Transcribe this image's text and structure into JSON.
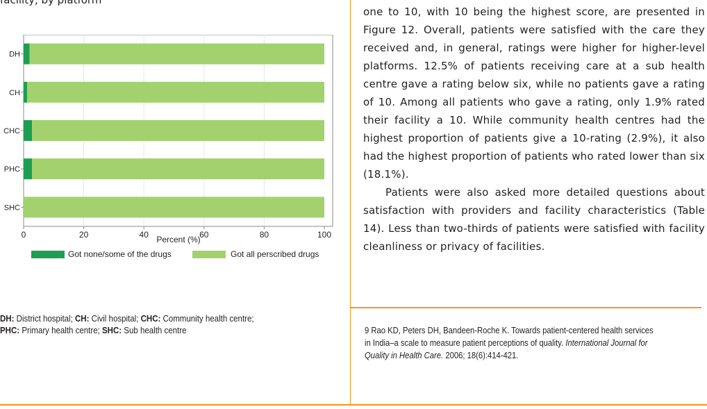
{
  "left_column": {
    "top_fragment": "facility, by platform",
    "caption": {
      "line1": [
        {
          "abbr": "DH:",
          "text": " District hospital; "
        },
        {
          "abbr": "CH:",
          "text": " Civil hospital; "
        },
        {
          "abbr": "CHC:",
          "text": " Community health centre;"
        }
      ],
      "line2": [
        {
          "abbr": "PHC:",
          "text": " Primary health centre; "
        },
        {
          "abbr": "SHC:",
          "text": " Sub health centre"
        }
      ]
    }
  },
  "chart_data": {
    "type": "bar",
    "orientation": "horizontal",
    "stacked": true,
    "categories": [
      "DH",
      "CH",
      "CHC",
      "PHC",
      "SHC"
    ],
    "series": [
      {
        "name": "Got none/some of the drugs",
        "color": "#1e9e53",
        "values": [
          2,
          1.2,
          2.8,
          2.8,
          0
        ]
      },
      {
        "name": "Got all perscribed drugs",
        "color": "#a3d16e",
        "values": [
          98,
          98.8,
          97.2,
          97.2,
          100
        ]
      }
    ],
    "xlabel": "Percent (%)",
    "xlim": [
      0,
      100
    ],
    "xticks": [
      0,
      20,
      40,
      60,
      80,
      100
    ],
    "grid": true,
    "legend_position": "bottom"
  },
  "right_column": {
    "paragraph1": "one to 10, with 10 being the highest score, are presented in Figure 12. Overall, patients were satisfied with the care they received and, in general, ratings were higher for higher-level platforms. 12.5% of patients receiving care at a sub health centre gave a rating below six, while no patients gave a rating of 10. Among all patients who gave a rating, only 1.9% rated their facility a 10. While community health centres had the highest proportion of patients give a 10-rating (2.9%), it also had the highest proportion of patients who rated lower than six (18.1%).",
    "paragraph2": "Patients were also asked more detailed questions about satisfaction with providers and facility characteristics (Table 14). Less than two-thirds of patients were satisfied with facility cleanliness or privacy of facilities.",
    "footnote": {
      "line1": "9 Rao KD, Peters DH, Bandeen-Roche K. Towards patient-centered health services",
      "line2_before": "in India–a scale to measure patient perceptions of quality. ",
      "line2_italic": "International Journal for",
      "line3_italic": "Quality in Health Care.",
      "line3_after": " 2006; 18(6):414-421."
    }
  }
}
